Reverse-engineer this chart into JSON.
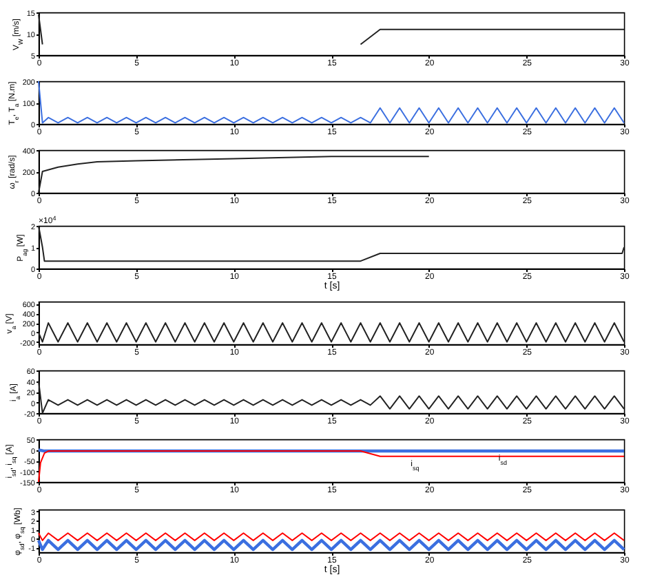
{
  "chart_data": [
    {
      "type": "line",
      "ylabel": "V$_{W}$ [m/s]",
      "xlim": [
        0,
        30
      ],
      "xticks": [
        0,
        5,
        10,
        15,
        20,
        25,
        30
      ],
      "ylim": [
        5,
        15
      ],
      "yticks": [
        5,
        10,
        15
      ],
      "series": [
        {
          "color": "#222222",
          "x": [
            0,
            0.2,
            1,
            16.5,
            17.5,
            30
          ],
          "values": [
            14.5,
            7.5,
            null,
            7.5,
            11,
            11
          ]
        }
      ]
    },
    {
      "type": "line",
      "ylabel": "T$_{e}$, T$_{a}$ [N.m]",
      "xlim": [
        0,
        30
      ],
      "xticks": [
        0,
        5,
        10,
        15,
        20,
        25,
        30
      ],
      "ylim": [
        0,
        200
      ],
      "yticks": [
        0,
        100,
        200
      ],
      "x": [
        0,
        0.2,
        0.5,
        1,
        1.5,
        2,
        2.5,
        3,
        3.5,
        4,
        4.5,
        5,
        5.5,
        6,
        6.5,
        7,
        7.5,
        8,
        8.5,
        9,
        9.5,
        10,
        10.5,
        11,
        11.5,
        12,
        12.5,
        13,
        13.5,
        14,
        14.5,
        15,
        15.5,
        16,
        16.5,
        17,
        17.5,
        18,
        18.5,
        19,
        19.5,
        20,
        20.5,
        21,
        21.5,
        22,
        22.5,
        23,
        23.5,
        24,
        24.5,
        25,
        25.5,
        26,
        26.5,
        27,
        27.5,
        28,
        28.5,
        29,
        29.5,
        30
      ],
      "series": [
        {
          "color": "#3b6fe0",
          "values": [
            200,
            5,
            30,
            5,
            30,
            5,
            30,
            5,
            30,
            5,
            30,
            5,
            30,
            5,
            30,
            5,
            30,
            5,
            30,
            5,
            30,
            5,
            30,
            5,
            30,
            5,
            30,
            5,
            30,
            5,
            30,
            5,
            30,
            5,
            30,
            5,
            75,
            5,
            75,
            5,
            75,
            5,
            75,
            5,
            75,
            5,
            75,
            5,
            75,
            5,
            75,
            5,
            75,
            5,
            75,
            5,
            75,
            5,
            75,
            5,
            75,
            5
          ]
        }
      ]
    },
    {
      "type": "line",
      "ylabel": "ω$_{r}$ [rad/s]",
      "xlim": [
        0,
        30
      ],
      "xticks": [
        0,
        5,
        10,
        15,
        20,
        25,
        30
      ],
      "ylim": [
        0,
        400
      ],
      "yticks": [
        0,
        200,
        400
      ],
      "series": [
        {
          "color": "#222222",
          "x": [
            0,
            0.2,
            1,
            2,
            3,
            5,
            10,
            15,
            20
          ],
          "values": [
            0,
            200,
            240,
            270,
            290,
            300,
            320,
            340,
            340
          ]
        }
      ]
    },
    {
      "type": "line",
      "ylabel": "P$_{ag}$ [W]",
      "xlabel": "t [s]",
      "annotations": [
        "×10$^{4}$"
      ],
      "xlim": [
        0,
        30
      ],
      "xticks": [
        0,
        5,
        10,
        15,
        20,
        25,
        30
      ],
      "ylim": [
        0,
        2
      ],
      "yticks": [
        0,
        1,
        2
      ],
      "series": [
        {
          "color": "#222222",
          "x": [
            0,
            0.2,
            0.3,
            16.5,
            17.5,
            29.9,
            30
          ],
          "values": [
            2,
            1,
            0.35,
            0.35,
            0.71,
            0.71,
            1
          ]
        }
      ]
    },
    {
      "type": "line",
      "ylabel": "v$_{a}$ [V]",
      "xlim": [
        0,
        30
      ],
      "xticks": [
        0,
        5,
        10,
        15,
        20,
        25,
        30
      ],
      "ylim": [
        -250,
        650
      ],
      "yticks": [
        -200,
        0,
        200,
        400,
        600
      ],
      "x": [
        0,
        0.2,
        0.5,
        1,
        1.5,
        2,
        2.5,
        3,
        3.5,
        4,
        4.5,
        5,
        5.5,
        6,
        6.5,
        7,
        7.5,
        8,
        8.5,
        9,
        9.5,
        10,
        10.5,
        11,
        11.5,
        12,
        12.5,
        13,
        13.5,
        14,
        14.5,
        15,
        15.5,
        16,
        16.5,
        17,
        17.5,
        18,
        18.5,
        19,
        19.5,
        20,
        20.5,
        21,
        21.5,
        22,
        22.5,
        23,
        23.5,
        24,
        24.5,
        25,
        25.5,
        26,
        26.5,
        27,
        27.5,
        28,
        28.5,
        29,
        29.5,
        30
      ],
      "series": [
        {
          "color": "#222222",
          "values": [
            0,
            -200,
            200,
            -200,
            200,
            -200,
            200,
            -200,
            200,
            -200,
            200,
            -200,
            200,
            -200,
            200,
            -200,
            200,
            -200,
            200,
            -200,
            200,
            -200,
            200,
            -200,
            200,
            -200,
            200,
            -200,
            200,
            -200,
            200,
            -200,
            200,
            -200,
            200,
            -200,
            200,
            -200,
            200,
            -200,
            200,
            -200,
            200,
            -200,
            200,
            -200,
            200,
            -200,
            200,
            -200,
            200,
            -200,
            200,
            -200,
            200,
            -200,
            200,
            -200,
            200,
            -200,
            200,
            -200
          ]
        }
      ]
    },
    {
      "type": "line",
      "ylabel": "i$_{a}$ [A]",
      "xlim": [
        0,
        30
      ],
      "xticks": [
        0,
        5,
        10,
        15,
        20,
        25,
        30
      ],
      "ylim": [
        -20,
        60
      ],
      "yticks": [
        -20,
        0,
        20,
        40,
        60
      ],
      "x": [
        0,
        0.2,
        0.5,
        1,
        1.5,
        2,
        2.5,
        3,
        3.5,
        4,
        4.5,
        5,
        5.5,
        6,
        6.5,
        7,
        7.5,
        8,
        8.5,
        9,
        9.5,
        10,
        10.5,
        11,
        11.5,
        12,
        12.5,
        13,
        13.5,
        14,
        14.5,
        15,
        15.5,
        16,
        16.5,
        17,
        17.5,
        18,
        18.5,
        19,
        19.5,
        20,
        20.5,
        21,
        21.5,
        22,
        22.5,
        23,
        23.5,
        24,
        24.5,
        25,
        25.5,
        26,
        26.5,
        27,
        27.5,
        28,
        28.5,
        29,
        29.5,
        30
      ],
      "series": [
        {
          "color": "#222222",
          "values": [
            40,
            -20,
            5,
            -5,
            5,
            -5,
            5,
            -5,
            5,
            -5,
            5,
            -5,
            5,
            -5,
            5,
            -5,
            5,
            -5,
            5,
            -5,
            5,
            -5,
            5,
            -5,
            5,
            -5,
            5,
            -5,
            5,
            -5,
            5,
            -5,
            5,
            -5,
            5,
            -5,
            12,
            -12,
            12,
            -12,
            12,
            -12,
            12,
            -12,
            12,
            -12,
            12,
            -12,
            12,
            -12,
            12,
            -12,
            12,
            -12,
            12,
            -12,
            12,
            -12,
            12,
            -12,
            12,
            -12
          ]
        }
      ]
    },
    {
      "type": "line",
      "ylabel": "i$_{sd}$, i$_{sq}$ [A]",
      "xlim": [
        0,
        30
      ],
      "xticks": [
        0,
        5,
        10,
        15,
        20,
        25,
        30
      ],
      "ylim": [
        -150,
        50
      ],
      "yticks": [
        -150,
        -100,
        -50,
        0,
        50
      ],
      "annotations": [
        {
          "text": "i$_{sq}$",
          "x": 19,
          "y": -30
        },
        {
          "text": "i$_{sd}$",
          "x": 23.5,
          "y": -5
        }
      ],
      "series": [
        {
          "color": "#3b6fe0",
          "x": [
            0,
            0.3,
            30
          ],
          "values": [
            0,
            -5,
            -5
          ]
        },
        {
          "color": "#ff0000",
          "x": [
            0,
            0.1,
            0.3,
            0.5,
            16.5,
            17.5,
            30
          ],
          "values": [
            -150,
            -60,
            -15,
            -5,
            -5,
            -30,
            -30
          ]
        }
      ]
    },
    {
      "type": "line",
      "ylabel": "φ$_{sd}$, φ$_{sq}$ [Wb]",
      "xlabel": "t [s]",
      "xlim": [
        0,
        30
      ],
      "xticks": [
        0,
        5,
        10,
        15,
        20,
        25,
        30
      ],
      "ylim": [
        -1.5,
        3.2
      ],
      "yticks": [
        -1,
        0,
        1,
        2,
        3
      ],
      "x": [
        0,
        0.2,
        0.5,
        1,
        1.5,
        2,
        2.5,
        3,
        3.5,
        4,
        4.5,
        5,
        5.5,
        6,
        6.5,
        7,
        7.5,
        8,
        8.5,
        9,
        9.5,
        10,
        10.5,
        11,
        11.5,
        12,
        12.5,
        13,
        13.5,
        14,
        14.5,
        15,
        15.5,
        16,
        16.5,
        17,
        17.5,
        18,
        18.5,
        19,
        19.5,
        20,
        20.5,
        21,
        21.5,
        22,
        22.5,
        23,
        23.5,
        24,
        24.5,
        25,
        25.5,
        26,
        26.5,
        27,
        27.5,
        28,
        28.5,
        29,
        29.5,
        30
      ],
      "series": [
        {
          "color": "#3b6fe0",
          "values": [
            -0.2,
            -1.2,
            -0.2,
            -1.2,
            -0.2,
            -1.2,
            -0.2,
            -1.2,
            -0.2,
            -1.2,
            -0.2,
            -1.2,
            -0.2,
            -1.2,
            -0.2,
            -1.2,
            -0.2,
            -1.2,
            -0.2,
            -1.2,
            -0.2,
            -1.2,
            -0.2,
            -1.2,
            -0.2,
            -1.2,
            -0.2,
            -1.2,
            -0.2,
            -1.2,
            -0.2,
            -1.2,
            -0.2,
            -1.2,
            -0.2,
            -1.2,
            -0.2,
            -1.2,
            -0.2,
            -1.2,
            -0.2,
            -1.2,
            -0.2,
            -1.2,
            -0.2,
            -1.2,
            -0.2,
            -1.2,
            -0.2,
            -1.2,
            -0.2,
            -1.2,
            -0.2,
            -1.2,
            -0.2,
            -1.2,
            -0.2,
            -1.2,
            -0.2,
            -1.2,
            -0.2,
            -1.2
          ]
        },
        {
          "color": "#ff0000",
          "values": [
            0.6,
            -0.2,
            0.6,
            -0.2,
            0.6,
            -0.2,
            0.6,
            -0.2,
            0.6,
            -0.2,
            0.6,
            -0.2,
            0.6,
            -0.2,
            0.6,
            -0.2,
            0.6,
            -0.2,
            0.6,
            -0.2,
            0.6,
            -0.2,
            0.6,
            -0.2,
            0.6,
            -0.2,
            0.6,
            -0.2,
            0.6,
            -0.2,
            0.6,
            -0.2,
            0.6,
            -0.2,
            0.6,
            -0.2,
            0.6,
            -0.2,
            0.6,
            -0.2,
            0.6,
            -0.2,
            0.6,
            -0.2,
            0.6,
            -0.2,
            0.6,
            -0.2,
            0.6,
            -0.2,
            0.6,
            -0.2,
            0.6,
            -0.2,
            0.6,
            -0.2,
            0.6,
            -0.2,
            0.6,
            -0.2,
            0.6,
            -0.2
          ]
        }
      ]
    }
  ]
}
